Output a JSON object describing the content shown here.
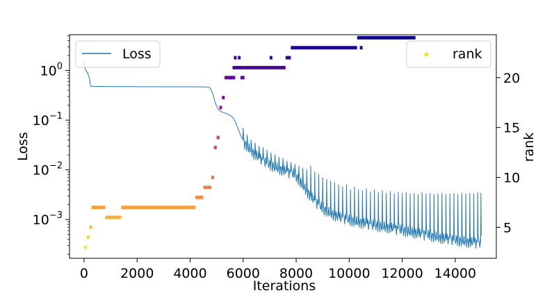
{
  "chart_data": {
    "type": "line+scatter",
    "title": "",
    "xlabel": "Iterations",
    "ylabel_left": "Loss",
    "ylabel_right": "rank",
    "x_ticks": [
      0,
      2000,
      4000,
      6000,
      8000,
      10000,
      12000,
      14000
    ],
    "x_tick_labels": [
      "0",
      "2000",
      "4000",
      "6000",
      "8000",
      "10000",
      "12000",
      "14000"
    ],
    "xlim": [
      -550,
      15550
    ],
    "y_left_scale": "log",
    "y_left_ticks_exp": [
      0,
      -1,
      -2,
      -3
    ],
    "y_left_tick_labels": [
      {
        "base": "10",
        "exp": "0"
      },
      {
        "base": "10",
        "exp": "−1"
      },
      {
        "base": "10",
        "exp": "−2"
      },
      {
        "base": "10",
        "exp": "−3"
      }
    ],
    "y_left_lim_exp": [
      -3.78,
      0.72
    ],
    "y_right_ticks": [
      5,
      10,
      15,
      20
    ],
    "y_right_tick_labels": [
      "5",
      "10",
      "15",
      "20"
    ],
    "y_right_lim": [
      1.9,
      24.3
    ],
    "legend": {
      "loss": {
        "label": "Loss",
        "placement": "upper-left",
        "color": "#1f77b4"
      },
      "rank": {
        "label": "rank",
        "placement": "upper-right",
        "color": "#f3e633"
      }
    },
    "loss_series": {
      "name": "Loss",
      "color": "#1f77b4",
      "trend": [
        [
          0,
          1.6
        ],
        [
          30,
          1.1
        ],
        [
          80,
          1.0
        ],
        [
          150,
          0.85
        ],
        [
          200,
          0.7
        ],
        [
          250,
          0.48
        ],
        [
          1000,
          0.475
        ],
        [
          2000,
          0.472
        ],
        [
          3000,
          0.47
        ],
        [
          4000,
          0.47
        ],
        [
          4600,
          0.468
        ],
        [
          4750,
          0.45
        ],
        [
          4850,
          0.35
        ],
        [
          4950,
          0.22
        ],
        [
          5050,
          0.17
        ],
        [
          5150,
          0.15
        ],
        [
          5300,
          0.14
        ],
        [
          5450,
          0.13
        ],
        [
          5600,
          0.115
        ],
        [
          5700,
          0.095
        ],
        [
          5800,
          0.07
        ],
        [
          5900,
          0.05
        ],
        [
          6050,
          0.035
        ],
        [
          6200,
          0.028
        ],
        [
          6400,
          0.022
        ],
        [
          6600,
          0.018
        ],
        [
          6800,
          0.015
        ],
        [
          7000,
          0.013
        ],
        [
          7300,
          0.011
        ],
        [
          7600,
          0.0095
        ],
        [
          7900,
          0.0085
        ],
        [
          8100,
          0.0065
        ],
        [
          8300,
          0.0045
        ],
        [
          8500,
          0.0032
        ],
        [
          8700,
          0.0024
        ],
        [
          9000,
          0.0017
        ],
        [
          9300,
          0.00135
        ],
        [
          9600,
          0.00115
        ],
        [
          10000,
          0.001
        ],
        [
          10500,
          0.00087
        ],
        [
          11000,
          0.00077
        ],
        [
          11500,
          0.0007
        ],
        [
          12000,
          0.00062
        ],
        [
          12500,
          0.00055
        ],
        [
          13000,
          0.00049
        ],
        [
          13500,
          0.00043
        ],
        [
          14000,
          0.00039
        ],
        [
          14500,
          0.00036
        ],
        [
          15000,
          0.00034
        ]
      ],
      "spikes": [
        [
          6000,
          0.07
        ],
        [
          6150,
          0.05
        ],
        [
          6300,
          0.04
        ],
        [
          6450,
          0.035
        ],
        [
          6600,
          0.03
        ],
        [
          6750,
          0.028
        ],
        [
          6900,
          0.025
        ],
        [
          7050,
          0.022
        ],
        [
          7200,
          0.02
        ],
        [
          7350,
          0.018
        ],
        [
          7500,
          0.017
        ],
        [
          7650,
          0.015
        ],
        [
          7800,
          0.014
        ],
        [
          7950,
          0.013
        ],
        [
          8100,
          0.012
        ],
        [
          8250,
          0.011
        ],
        [
          8400,
          0.01
        ],
        [
          8550,
          0.012
        ],
        [
          8700,
          0.009
        ],
        [
          8850,
          0.008
        ],
        [
          9000,
          0.007
        ],
        [
          9150,
          0.0065
        ],
        [
          9300,
          0.006
        ],
        [
          9450,
          0.0055
        ],
        [
          9600,
          0.005
        ],
        [
          9750,
          0.0045
        ],
        [
          9900,
          0.005
        ],
        [
          10050,
          0.004
        ],
        [
          10200,
          0.0045
        ],
        [
          10350,
          0.004
        ],
        [
          10500,
          0.0038
        ],
        [
          10650,
          0.0042
        ],
        [
          10800,
          0.0036
        ],
        [
          10950,
          0.004
        ],
        [
          11100,
          0.0035
        ],
        [
          11250,
          0.0038
        ],
        [
          11400,
          0.0034
        ],
        [
          11550,
          0.0037
        ],
        [
          11700,
          0.0033
        ],
        [
          11850,
          0.0036
        ],
        [
          12000,
          0.0034
        ],
        [
          12150,
          0.0035
        ],
        [
          12300,
          0.0033
        ],
        [
          12450,
          0.0034
        ],
        [
          12600,
          0.0032
        ],
        [
          12750,
          0.0035
        ],
        [
          12900,
          0.0033
        ],
        [
          13050,
          0.0034
        ],
        [
          13200,
          0.0032
        ],
        [
          13350,
          0.0033
        ],
        [
          13500,
          0.0034
        ],
        [
          13650,
          0.0032
        ],
        [
          13800,
          0.0033
        ],
        [
          13950,
          0.0034
        ],
        [
          14100,
          0.0032
        ],
        [
          14250,
          0.0034
        ],
        [
          14400,
          0.0033
        ],
        [
          14550,
          0.0034
        ],
        [
          14700,
          0.0033
        ],
        [
          14850,
          0.0035
        ],
        [
          14970,
          0.0034
        ]
      ]
    },
    "rank_series": {
      "name": "rank",
      "colormap": "plasma",
      "color_range": [
        2,
        24
      ],
      "segments": [
        {
          "x0": 0,
          "x1": 100,
          "rank": 3
        },
        {
          "x0": 100,
          "x1": 200,
          "rank": 4
        },
        {
          "x0": 200,
          "x1": 280,
          "rank": 5
        },
        {
          "x0": 280,
          "x1": 800,
          "rank": 7
        },
        {
          "x0": 800,
          "x1": 1400,
          "rank": 6
        },
        {
          "x0": 1400,
          "x1": 4200,
          "rank": 7
        },
        {
          "x0": 4200,
          "x1": 4500,
          "rank": 8
        },
        {
          "x0": 4500,
          "x1": 4800,
          "rank": 9
        },
        {
          "x0": 4800,
          "x1": 4900,
          "rank": 10
        },
        {
          "x0": 4900,
          "x1": 5000,
          "rank": 13
        },
        {
          "x0": 5000,
          "x1": 5100,
          "rank": 14
        },
        {
          "x0": 5100,
          "x1": 5200,
          "rank": 17
        },
        {
          "x0": 5200,
          "x1": 5300,
          "rank": 18
        },
        {
          "x0": 5300,
          "x1": 5600,
          "rank": 20
        },
        {
          "x0": 5600,
          "x1": 6000,
          "rank": 21
        },
        {
          "x0": 6000,
          "x1": 7600,
          "rank": 21
        },
        {
          "x0": 7600,
          "x1": 7800,
          "rank": 22
        },
        {
          "x0": 7800,
          "x1": 10300,
          "rank": 23
        },
        {
          "x0": 10300,
          "x1": 12500,
          "rank": 24
        }
      ],
      "extras": [
        {
          "x0": 5500,
          "x1": 5700,
          "rank": 20
        },
        {
          "x0": 5800,
          "x1": 5900,
          "rank": 22
        },
        {
          "x0": 5900,
          "x1": 6050,
          "rank": 20
        },
        {
          "x0": 5650,
          "x1": 5750,
          "rank": 22
        },
        {
          "x0": 7000,
          "x1": 7100,
          "rank": 22
        },
        {
          "x0": 10400,
          "x1": 10500,
          "rank": 23
        }
      ]
    }
  }
}
